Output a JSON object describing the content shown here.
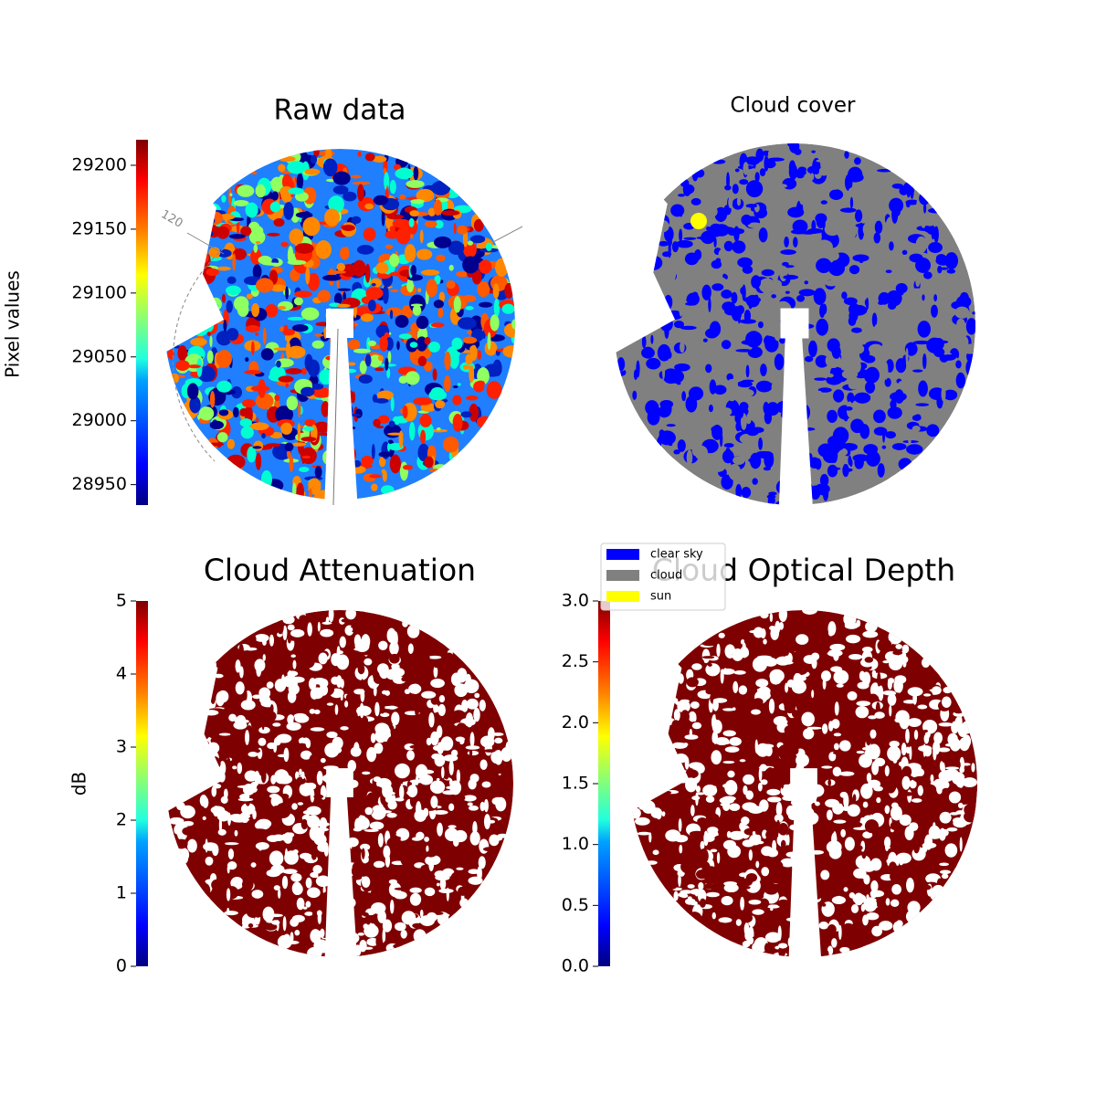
{
  "chart_data": [
    {
      "type": "image",
      "title": "Raw data",
      "colorbar_label": "Pixel values",
      "ylim": [
        28934,
        29220
      ],
      "yticks": [
        28950,
        29000,
        29050,
        29100,
        29150,
        29200
      ],
      "annotation": "120"
    },
    {
      "type": "image",
      "title": "Cloud cover",
      "legend": [
        {
          "name": "clear sky",
          "color": "#0000ff"
        },
        {
          "name": "cloud",
          "color": "#808080"
        },
        {
          "name": "sun",
          "color": "#ffff00"
        }
      ]
    },
    {
      "type": "image",
      "title": "Cloud Attenuation",
      "colorbar_label": "dB",
      "ylim": [
        0,
        5
      ],
      "yticks": [
        0,
        1,
        2,
        3,
        4,
        5
      ]
    },
    {
      "type": "image",
      "title": "Cloud Optical Depth",
      "ylim": [
        0,
        3
      ],
      "yticks": [
        {
          "value": 0,
          "label": "0.0"
        },
        {
          "value": 0.5,
          "label": "0.5"
        },
        {
          "value": 1,
          "label": "1.0"
        },
        {
          "value": 1.5,
          "label": "1.5"
        },
        {
          "value": 2,
          "label": "2.0"
        },
        {
          "value": 2.5,
          "label": "2.5"
        },
        {
          "value": 3,
          "label": "3.0"
        }
      ]
    }
  ]
}
